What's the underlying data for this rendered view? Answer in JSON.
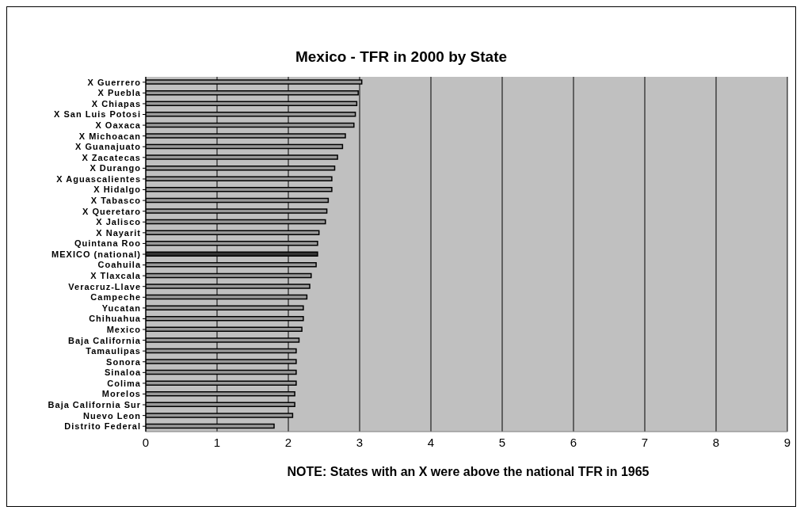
{
  "chart_data": {
    "type": "bar",
    "orientation": "horizontal",
    "title": "Mexico - TFR in 2000 by State",
    "xlabel": "NOTE: States with an X were above the national TFR in 1965",
    "categories": [
      "X Guerrero",
      "X Puebla",
      "X Chiapas",
      "X San Luis Potosi",
      "X Oaxaca",
      "X Michoacan",
      "X Guanajuato",
      "X Zacatecas",
      "X Durango",
      "X Aguascalientes",
      "X Hidalgo",
      "X Tabasco",
      "X Queretaro",
      "X Jalisco",
      "X Nayarit",
      "Quintana Roo",
      "MEXICO (national)",
      "Coahuila",
      "X Tlaxcala",
      "Veracruz-Llave",
      "Campeche",
      "Yucatan",
      "Chihuahua",
      "Mexico",
      "Baja California",
      "Tamaulipas",
      "Sonora",
      "Sinaloa",
      "Colima",
      "Morelos",
      "Baja California Sur",
      "Nuevo Leon",
      "Distrito Federal"
    ],
    "values": [
      3.03,
      2.98,
      2.96,
      2.94,
      2.92,
      2.8,
      2.76,
      2.69,
      2.65,
      2.61,
      2.61,
      2.56,
      2.54,
      2.52,
      2.43,
      2.41,
      2.41,
      2.39,
      2.32,
      2.3,
      2.26,
      2.21,
      2.21,
      2.19,
      2.15,
      2.11,
      2.11,
      2.11,
      2.11,
      2.09,
      2.09,
      2.06,
      1.8
    ],
    "colors": [
      "#999999",
      "#999999",
      "#999999",
      "#999999",
      "#999999",
      "#999999",
      "#999999",
      "#999999",
      "#999999",
      "#999999",
      "#999999",
      "#999999",
      "#999999",
      "#999999",
      "#999999",
      "#999999",
      "#333333",
      "#999999",
      "#999999",
      "#999999",
      "#999999",
      "#999999",
      "#999999",
      "#999999",
      "#999999",
      "#999999",
      "#999999",
      "#999999",
      "#999999",
      "#999999",
      "#999999",
      "#999999",
      "#999999"
    ],
    "xlim": [
      0,
      9
    ],
    "xticks": [
      0,
      1,
      2,
      3,
      4,
      5,
      6,
      7,
      8,
      9
    ],
    "grid": "x"
  }
}
